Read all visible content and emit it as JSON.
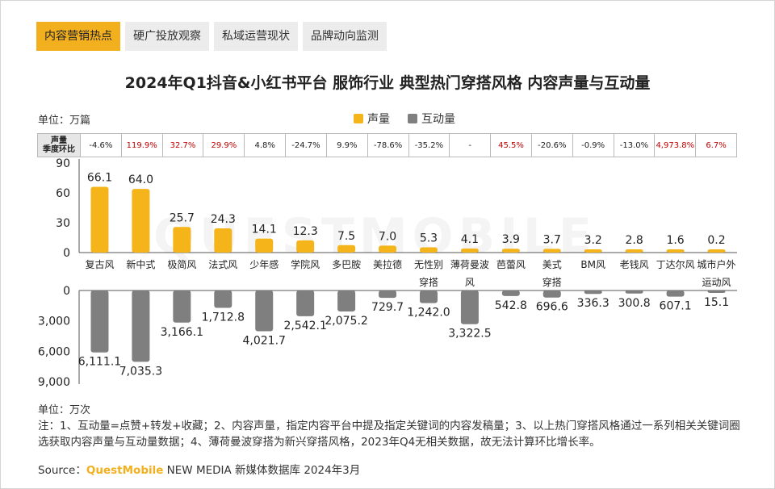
{
  "tabs": [
    {
      "label": "内容营销热点",
      "active": true
    },
    {
      "label": "硬广投放观察",
      "active": false
    },
    {
      "label": "私域运营现状",
      "active": false
    },
    {
      "label": "品牌动向监测",
      "active": false
    }
  ],
  "watermark": "QUESTMOBILE",
  "chart_data": {
    "type": "bar",
    "title": "2024年Q1抖音&小红书平台 服饰行业 典型热门穿搭风格 内容声量与互动量",
    "unit_top": "单位：万篇",
    "unit_bottom": "单位：万次",
    "qoq_header": [
      "声量",
      "季度环比"
    ],
    "categories": [
      "复古风",
      "新中式",
      "极简风",
      "法式风",
      "少年感",
      "学院风",
      "多巴胺",
      "美拉德",
      "无性别穿搭",
      "薄荷曼波风",
      "芭蕾风",
      "美式穿搭",
      "BM风",
      "老钱风",
      "丁达尔风",
      "城市户外运动风"
    ],
    "category_lines": [
      [
        "复古风"
      ],
      [
        "新中式"
      ],
      [
        "极简风"
      ],
      [
        "法式风"
      ],
      [
        "少年感"
      ],
      [
        "学院风"
      ],
      [
        "多巴胺"
      ],
      [
        "美拉德"
      ],
      [
        "无性别",
        "穿搭"
      ],
      [
        "薄荷曼波",
        "风"
      ],
      [
        "芭蕾风"
      ],
      [
        "美式",
        "穿搭"
      ],
      [
        "BM风"
      ],
      [
        "老钱风"
      ],
      [
        "丁达尔风"
      ],
      [
        "城市户外",
        "运动风"
      ]
    ],
    "qoq": [
      "-4.6%",
      "119.9%",
      "32.7%",
      "29.9%",
      "4.8%",
      "-24.7%",
      "9.9%",
      "-78.6%",
      "-35.2%",
      "-",
      "45.5%",
      "-20.6%",
      "-0.9%",
      "-13.0%",
      "4,973.8%",
      "6.7%"
    ],
    "qoq_red": [
      false,
      true,
      true,
      true,
      false,
      false,
      false,
      false,
      false,
      false,
      true,
      false,
      false,
      false,
      true,
      true
    ],
    "series": [
      {
        "name": "声量",
        "color": "#f5b41a",
        "values": [
          66.1,
          64.0,
          25.7,
          24.3,
          14.1,
          12.3,
          7.5,
          7.0,
          5.3,
          4.1,
          3.9,
          3.7,
          3.2,
          2.8,
          1.6,
          0.2
        ],
        "labels": [
          "66.1",
          "64.0",
          "25.7",
          "24.3",
          "14.1",
          "12.3",
          "7.5",
          "7.0",
          "5.3",
          "4.1",
          "3.9",
          "3.7",
          "3.2",
          "2.8",
          "1.6",
          "0.2"
        ],
        "ylim": [
          0,
          90
        ],
        "yticks": [
          "90",
          "60",
          "30",
          "0"
        ]
      },
      {
        "name": "互动量",
        "color": "#7f7f7f",
        "values": [
          6111.1,
          7035.3,
          3166.1,
          1712.8,
          4021.7,
          2542.1,
          2075.2,
          729.7,
          1242.0,
          3322.5,
          542.8,
          696.6,
          336.3,
          300.8,
          607.1,
          15.1
        ],
        "labels": [
          "6,111.1",
          "7,035.3",
          "3,166.1",
          "1,712.8",
          "4,021.7",
          "2,542.1",
          "2,075.2",
          "729.7",
          "1,242.0",
          "3,322.5",
          "542.8",
          "696.6",
          "336.3",
          "300.8",
          "607.1",
          "15.1"
        ],
        "ylim": [
          0,
          9000
        ],
        "yticks": [
          "0",
          "3,000",
          "6,000",
          "9,000"
        ]
      }
    ]
  },
  "notes": "注：1、互动量=点赞+转发+收藏；2、内容声量，指定内容平台中提及指定关键词的内容发稿量；3、以上热门穿搭风格通过一系列相关关键词圈选获取内容声量与互动量数据；4、薄荷曼波穿搭为新兴穿搭风格，2023年Q4无相关数据，故无法计算环比增长率。",
  "source": {
    "prefix": "Source：",
    "brand": "QuestMobile",
    "rest": " NEW MEDIA 新媒体数据库 2024年3月"
  }
}
